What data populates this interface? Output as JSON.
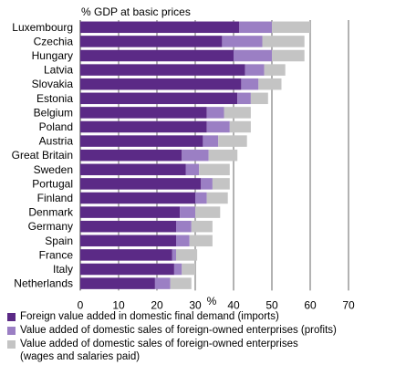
{
  "chart_data": {
    "type": "bar",
    "stacked": true,
    "orientation": "horizontal",
    "title": "% GDP at basic prices",
    "xlabel": "%",
    "xlim": [
      0,
      70
    ],
    "xticks": [
      0,
      10,
      20,
      30,
      40,
      50,
      60,
      70
    ],
    "grid": "vertical gridlines at 10, 20, 30, 40, 50, 60, 70",
    "legend_position": "bottom",
    "categories": [
      "Luxembourg",
      "Czechia",
      "Hungary",
      "Latvia",
      "Slovakia",
      "Estonia",
      "Belgium",
      "Poland",
      "Austria",
      "Great Britain",
      "Sweden",
      "Portugal",
      "Finland",
      "Denmark",
      "Germany",
      "Spain",
      "France",
      "Italy",
      "Netherlands"
    ],
    "series": [
      {
        "name": "Foreign value added in domestic final demand (imports)",
        "color": "#5b2a86",
        "values": [
          41.5,
          37,
          40,
          43,
          42,
          41,
          33,
          33,
          32,
          26.5,
          27.5,
          31.5,
          30,
          26,
          25,
          25,
          24,
          24.5,
          19.5
        ]
      },
      {
        "name": "Value added of domestic sales of foreign-owned enterprises (profits)",
        "color": "#9b7fc4",
        "values": [
          8.5,
          10.5,
          10,
          5,
          4.5,
          3.5,
          4.5,
          6,
          4,
          7,
          3.5,
          3,
          3,
          4,
          4,
          3.5,
          1,
          2,
          4
        ]
      },
      {
        "name": "Value added of domestic sales of foreign-owned enterprises (wages and salaries paid)",
        "name_lines": [
          "Value added of domestic sales of foreign-owned enterprises",
          "(wages and salaries paid)"
        ],
        "color": "#c4c4c4",
        "values": [
          10,
          11,
          8.5,
          5.5,
          6,
          4.5,
          7,
          5.5,
          7.5,
          7.5,
          8,
          4.5,
          5.5,
          6.5,
          5.5,
          6,
          5.5,
          3.5,
          5.5
        ]
      }
    ]
  }
}
